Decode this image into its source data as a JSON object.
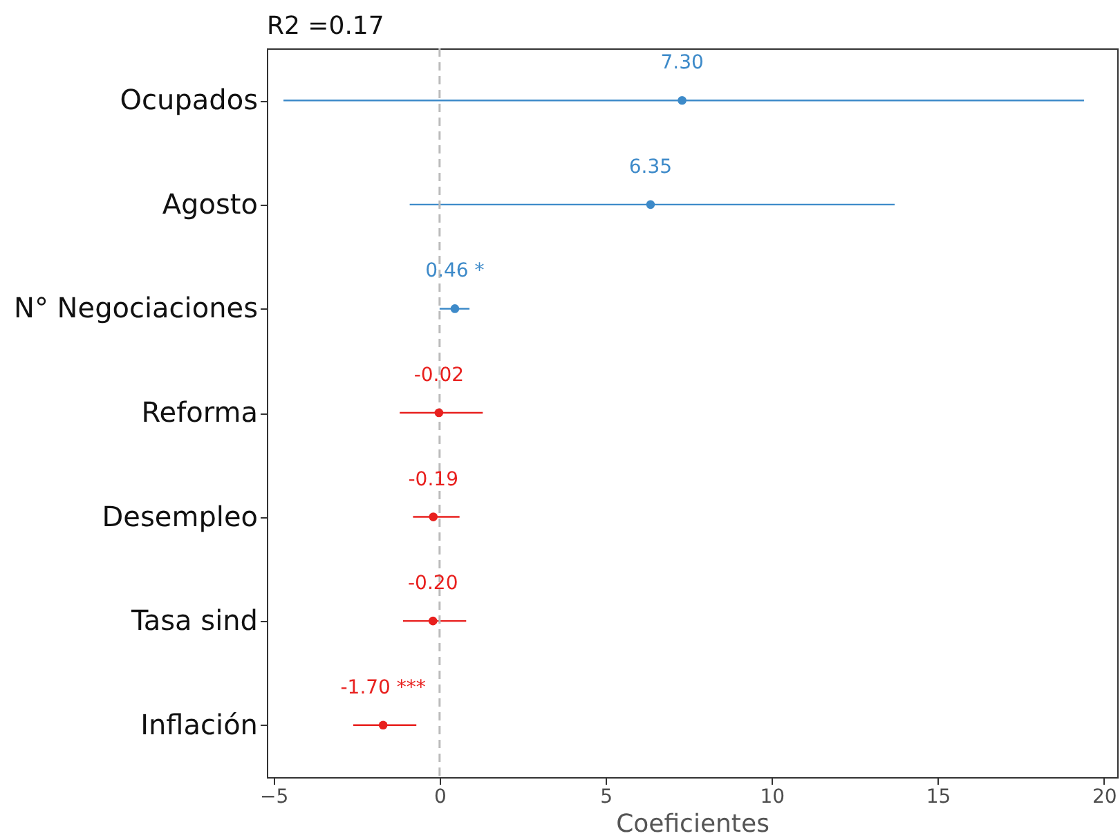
{
  "chart_data": {
    "type": "scatter",
    "orientation": "horizontal",
    "title": "R2 =0.17",
    "xlabel": "Coeficientes",
    "categories": [
      "Ocupados",
      "Agosto",
      "N° Negociaciones",
      "Reforma",
      "Desempleo",
      "Tasa sind",
      "Inflación"
    ],
    "values": [
      7.3,
      6.35,
      0.46,
      -0.02,
      -0.19,
      -0.2,
      -1.7
    ],
    "value_labels": [
      "7.30",
      "6.35",
      "0.46 *",
      "-0.02",
      "-0.19",
      "-0.20",
      "-1.70 ***"
    ],
    "colors": [
      "#3d8ac9",
      "#3d8ac9",
      "#3d8ac9",
      "#e8201e",
      "#e8201e",
      "#e8201e",
      "#e8201e"
    ],
    "errors": [
      [
        -4.7,
        19.4
      ],
      [
        -0.9,
        13.7
      ],
      [
        0.0,
        0.9
      ],
      [
        -1.2,
        1.3
      ],
      [
        -0.8,
        0.6
      ],
      [
        -1.1,
        0.8
      ],
      [
        -2.6,
        -0.7
      ]
    ],
    "xlim": [
      -5.2,
      20.4
    ],
    "xticks": [
      -5,
      0,
      5,
      10,
      15,
      20
    ],
    "ref_lines": [
      {
        "axis": "x",
        "value": 0,
        "color": "#bbbbbb",
        "line_style": "dashed"
      }
    ],
    "marker": "circle",
    "grid": false
  }
}
